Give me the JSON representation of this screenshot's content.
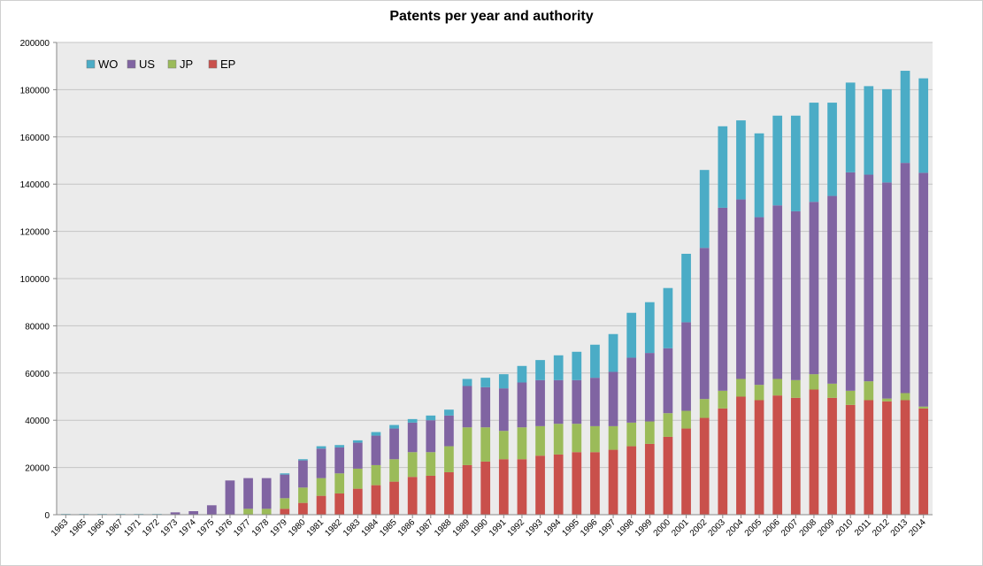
{
  "chart_data": {
    "type": "bar",
    "stacked": true,
    "title": "Patents per year and authority",
    "xlabel": "",
    "ylabel": "",
    "ylim": [
      0,
      200000
    ],
    "yticks": [
      0,
      20000,
      40000,
      60000,
      80000,
      100000,
      120000,
      140000,
      160000,
      180000,
      200000
    ],
    "grid": true,
    "legend_position": "top-left",
    "categories": [
      "1963",
      "1965",
      "1966",
      "1967",
      "1971",
      "1972",
      "1973",
      "1974",
      "1975",
      "1976",
      "1977",
      "1978",
      "1979",
      "1980",
      "1981",
      "1982",
      "1983",
      "1984",
      "1985",
      "1986",
      "1987",
      "1988",
      "1989",
      "1990",
      "1991",
      "1992",
      "1993",
      "1994",
      "1995",
      "1996",
      "1997",
      "1998",
      "1999",
      "2000",
      "2001",
      "2002",
      "2003",
      "2004",
      "2005",
      "2006",
      "2007",
      "2008",
      "2009",
      "2010",
      "2011",
      "2012",
      "2013",
      "2014"
    ],
    "series": [
      {
        "name": "EP",
        "color": "#c9504b",
        "values": [
          0,
          0,
          0,
          0,
          0,
          0,
          0,
          0,
          0,
          0,
          0,
          0,
          2500,
          5000,
          8000,
          9000,
          11000,
          12500,
          14000,
          16000,
          16500,
          18000,
          21000,
          22500,
          23500,
          23500,
          25000,
          25500,
          26500,
          26500,
          27500,
          29000,
          30000,
          33000,
          36500,
          41000,
          45000,
          50000,
          48500,
          50500,
          49500,
          53000,
          49500,
          46500,
          48500,
          48000,
          48500,
          45000
        ]
      },
      {
        "name": "JP",
        "color": "#9bbb59",
        "values": [
          0,
          0,
          0,
          0,
          0,
          0,
          0,
          0,
          0,
          0,
          2500,
          2500,
          4500,
          6500,
          7500,
          8500,
          8500,
          8500,
          9500,
          10500,
          10000,
          11000,
          16000,
          14500,
          12000,
          13500,
          12500,
          13000,
          12000,
          11000,
          10000,
          10000,
          9500,
          10000,
          7500,
          8000,
          7500,
          7500,
          6500,
          7000,
          7500,
          6500,
          6000,
          6000,
          8000,
          1200,
          3000,
          800
        ]
      },
      {
        "name": "US",
        "color": "#8064a2",
        "values": [
          0,
          0,
          0,
          0,
          0,
          0,
          1000,
          1500,
          4000,
          14500,
          13000,
          13000,
          10000,
          11500,
          12500,
          11000,
          11000,
          12500,
          13000,
          12500,
          13500,
          13000,
          17500,
          17000,
          18000,
          19000,
          19500,
          18500,
          18500,
          20500,
          23000,
          27500,
          29000,
          27500,
          37500,
          64000,
          77500,
          76000,
          71000,
          73500,
          71500,
          73000,
          79500,
          92500,
          87500,
          91500,
          97500,
          99000
        ]
      },
      {
        "name": "WO",
        "color": "#4bacc6",
        "values": [
          300,
          300,
          300,
          300,
          300,
          300,
          0,
          0,
          0,
          0,
          0,
          0,
          500,
          500,
          1000,
          1000,
          1000,
          1500,
          1500,
          1500,
          2000,
          2500,
          3000,
          4000,
          6000,
          7000,
          8500,
          10500,
          12000,
          14000,
          16000,
          19000,
          21500,
          25500,
          29000,
          33000,
          34500,
          33500,
          35500,
          38000,
          40500,
          42000,
          39500,
          38000,
          37500,
          39500,
          39000,
          40000
        ]
      }
    ],
    "legend_order": [
      "WO",
      "US",
      "JP",
      "EP"
    ]
  }
}
